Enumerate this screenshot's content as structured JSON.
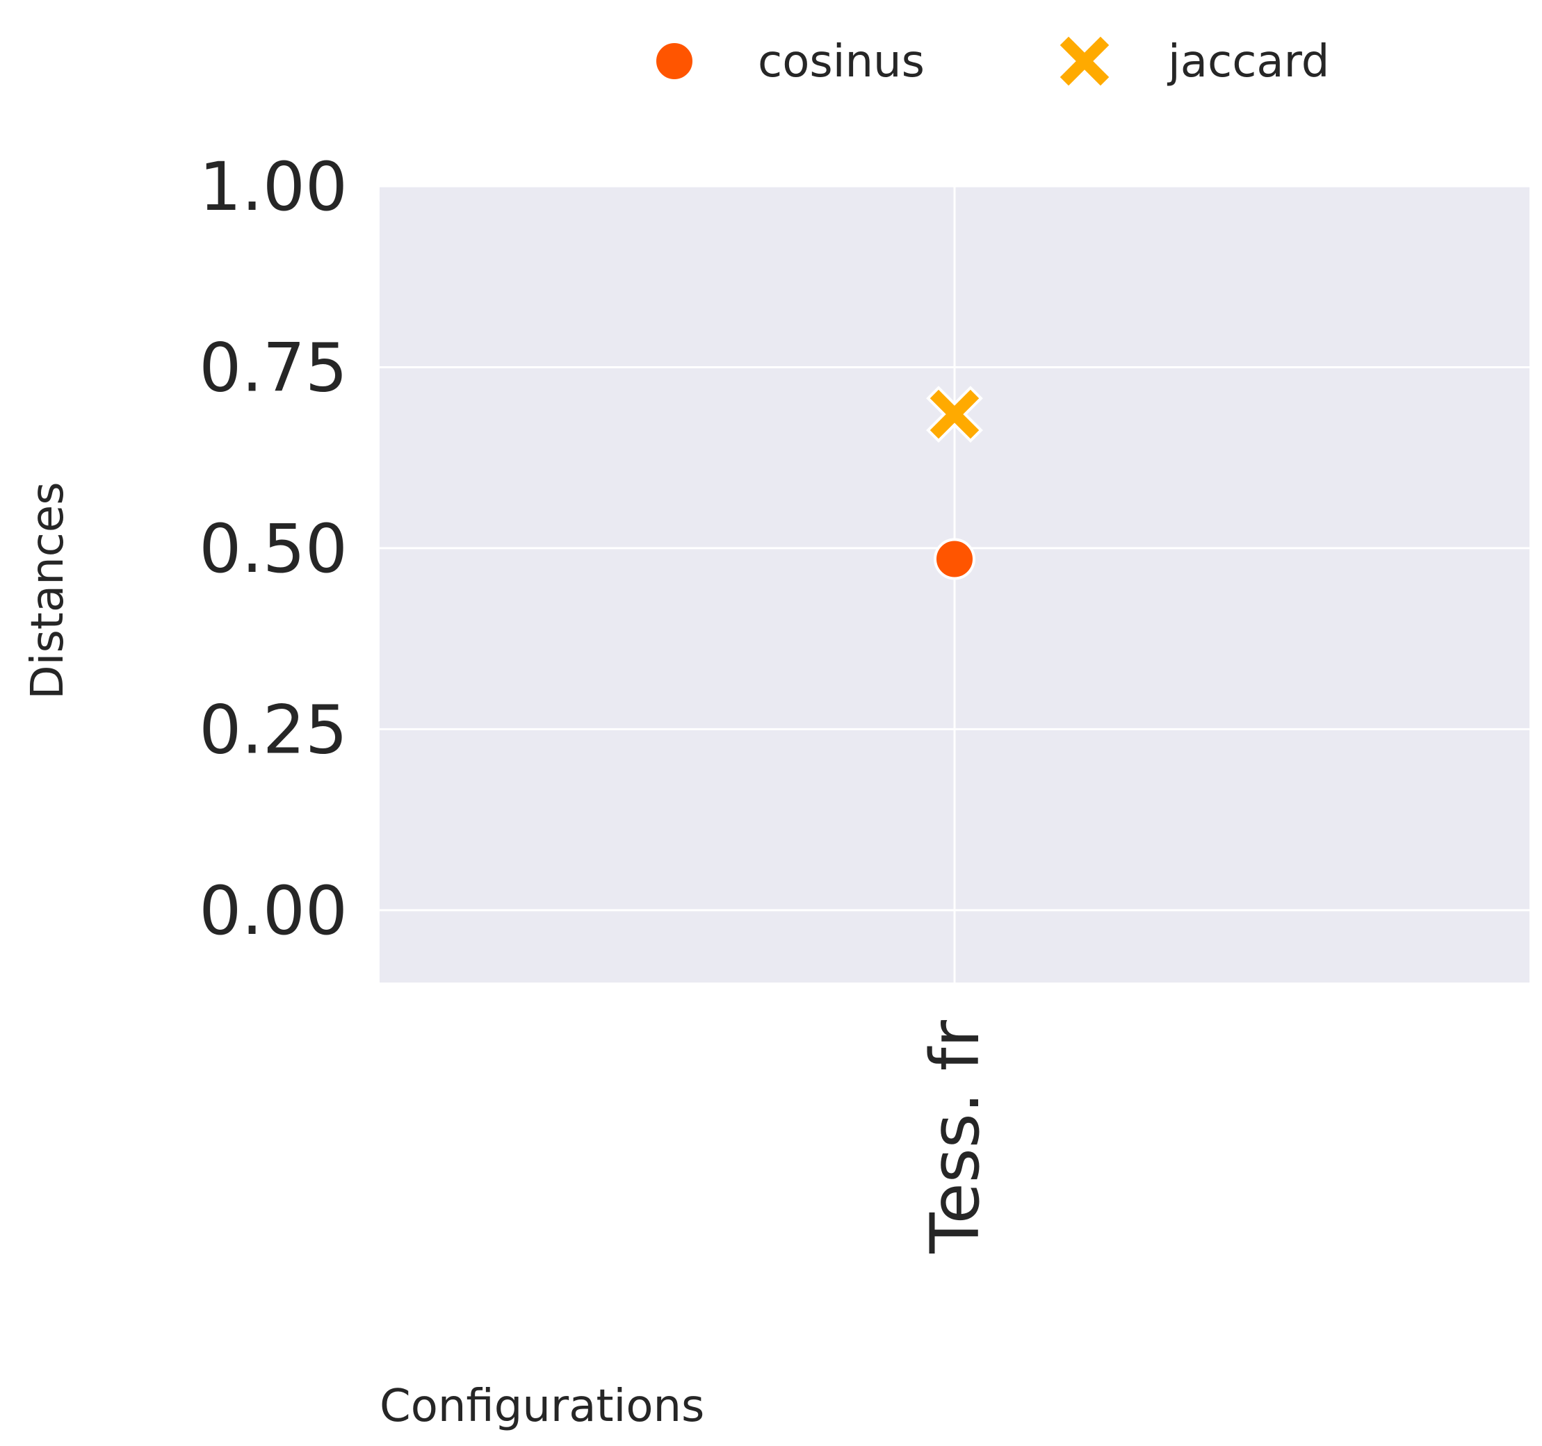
{
  "chart_data": {
    "type": "scatter",
    "categories": [
      "Tess. fr"
    ],
    "series": [
      {
        "name": "cosinus",
        "marker": "circle",
        "color": "#ff5500",
        "values": [
          0.485
        ]
      },
      {
        "name": "jaccard",
        "marker": "x",
        "color": "#ffaa00",
        "values": [
          0.685
        ]
      }
    ],
    "xlabel": "Configurations",
    "ylabel": "Distances",
    "ylim": [
      -0.1,
      1.0
    ],
    "yticks": [
      "0.00",
      "0.25",
      "0.50",
      "0.75",
      "1.00"
    ],
    "yticks_values": [
      0,
      0.25,
      0.5,
      0.75,
      1.0
    ],
    "grid": true,
    "legend_position": "top",
    "background_color": "#eaeaf2",
    "grid_color": "#ffffff"
  }
}
